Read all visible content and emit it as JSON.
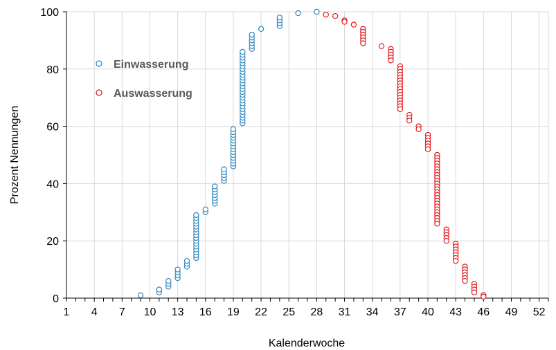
{
  "chart_data": {
    "type": "scatter",
    "xlabel": "Kalenderwoche",
    "ylabel": "Prozent Nennungen",
    "xlim": [
      1,
      53
    ],
    "ylim": [
      0,
      100
    ],
    "x_tick_labels": [
      "1",
      "4",
      "7",
      "10",
      "13",
      "16",
      "19",
      "22",
      "25",
      "28",
      "31",
      "34",
      "37",
      "40",
      "43",
      "46",
      "49",
      "52"
    ],
    "y_tick_labels": [
      "0",
      "20",
      "40",
      "60",
      "80",
      "100"
    ],
    "grid": true,
    "legend_position": "upper-left",
    "series": [
      {
        "name": "Einwasserung",
        "color": "#2E86C1",
        "points": [
          [
            9,
            1
          ],
          [
            11,
            2
          ],
          [
            11,
            3
          ],
          [
            12,
            4
          ],
          [
            12,
            5
          ],
          [
            12,
            6
          ],
          [
            13,
            7
          ],
          [
            13,
            8
          ],
          [
            13,
            9
          ],
          [
            13,
            10
          ],
          [
            14,
            11
          ],
          [
            14,
            12
          ],
          [
            14,
            13
          ],
          [
            15,
            14
          ],
          [
            15,
            15
          ],
          [
            15,
            16
          ],
          [
            15,
            17
          ],
          [
            15,
            18
          ],
          [
            15,
            19
          ],
          [
            15,
            20
          ],
          [
            15,
            21
          ],
          [
            15,
            22
          ],
          [
            15,
            23
          ],
          [
            15,
            24
          ],
          [
            15,
            25
          ],
          [
            15,
            26
          ],
          [
            15,
            27
          ],
          [
            15,
            28
          ],
          [
            15,
            29
          ],
          [
            16,
            30
          ],
          [
            16,
            31
          ],
          [
            17,
            33
          ],
          [
            17,
            34
          ],
          [
            17,
            35
          ],
          [
            17,
            36
          ],
          [
            17,
            37
          ],
          [
            17,
            38
          ],
          [
            17,
            39
          ],
          [
            18,
            41
          ],
          [
            18,
            42
          ],
          [
            18,
            43
          ],
          [
            18,
            44
          ],
          [
            18,
            45
          ],
          [
            19,
            46
          ],
          [
            19,
            47
          ],
          [
            19,
            48
          ],
          [
            19,
            49
          ],
          [
            19,
            50
          ],
          [
            19,
            51
          ],
          [
            19,
            52
          ],
          [
            19,
            53
          ],
          [
            19,
            54
          ],
          [
            19,
            55
          ],
          [
            19,
            56
          ],
          [
            19,
            57
          ],
          [
            19,
            58
          ],
          [
            19,
            59
          ],
          [
            20,
            61
          ],
          [
            20,
            62
          ],
          [
            20,
            63
          ],
          [
            20,
            64
          ],
          [
            20,
            65
          ],
          [
            20,
            66
          ],
          [
            20,
            67
          ],
          [
            20,
            68
          ],
          [
            20,
            69
          ],
          [
            20,
            70
          ],
          [
            20,
            71
          ],
          [
            20,
            72
          ],
          [
            20,
            73
          ],
          [
            20,
            74
          ],
          [
            20,
            75
          ],
          [
            20,
            76
          ],
          [
            20,
            77
          ],
          [
            20,
            78
          ],
          [
            20,
            79
          ],
          [
            20,
            80
          ],
          [
            20,
            81
          ],
          [
            20,
            82
          ],
          [
            20,
            83
          ],
          [
            20,
            84
          ],
          [
            20,
            85
          ],
          [
            20,
            86
          ],
          [
            21,
            87
          ],
          [
            21,
            88
          ],
          [
            21,
            89
          ],
          [
            21,
            90
          ],
          [
            21,
            91
          ],
          [
            21,
            92
          ],
          [
            22,
            94
          ],
          [
            24,
            95
          ],
          [
            24,
            96
          ],
          [
            24,
            97
          ],
          [
            24,
            98
          ],
          [
            26,
            99.5
          ],
          [
            28,
            100
          ]
        ]
      },
      {
        "name": "Auswasserung",
        "color": "#E31A1C",
        "points": [
          [
            29,
            99
          ],
          [
            30,
            98.5
          ],
          [
            31,
            97
          ],
          [
            31,
            96.5
          ],
          [
            32,
            95.5
          ],
          [
            33,
            94
          ],
          [
            33,
            93
          ],
          [
            33,
            92
          ],
          [
            33,
            91
          ],
          [
            33,
            90
          ],
          [
            33,
            89
          ],
          [
            35,
            88
          ],
          [
            36,
            87
          ],
          [
            36,
            86
          ],
          [
            36,
            85
          ],
          [
            36,
            84
          ],
          [
            36,
            83
          ],
          [
            37,
            81
          ],
          [
            37,
            80
          ],
          [
            37,
            79
          ],
          [
            37,
            78
          ],
          [
            37,
            77
          ],
          [
            37,
            76
          ],
          [
            37,
            75
          ],
          [
            37,
            74
          ],
          [
            37,
            73
          ],
          [
            37,
            72
          ],
          [
            37,
            71
          ],
          [
            37,
            70
          ],
          [
            37,
            69
          ],
          [
            37,
            68
          ],
          [
            37,
            67
          ],
          [
            37,
            66
          ],
          [
            38,
            64
          ],
          [
            38,
            63
          ],
          [
            38,
            62
          ],
          [
            39,
            60
          ],
          [
            39,
            59
          ],
          [
            40,
            57
          ],
          [
            40,
            56
          ],
          [
            40,
            55
          ],
          [
            40,
            54
          ],
          [
            40,
            53
          ],
          [
            40,
            52
          ],
          [
            41,
            50
          ],
          [
            41,
            49
          ],
          [
            41,
            48
          ],
          [
            41,
            47
          ],
          [
            41,
            46
          ],
          [
            41,
            45
          ],
          [
            41,
            44
          ],
          [
            41,
            43
          ],
          [
            41,
            42
          ],
          [
            41,
            41
          ],
          [
            41,
            40
          ],
          [
            41,
            39
          ],
          [
            41,
            38
          ],
          [
            41,
            37
          ],
          [
            41,
            36
          ],
          [
            41,
            35
          ],
          [
            41,
            34
          ],
          [
            41,
            33
          ],
          [
            41,
            32
          ],
          [
            41,
            31
          ],
          [
            41,
            30
          ],
          [
            41,
            29
          ],
          [
            41,
            28
          ],
          [
            41,
            27
          ],
          [
            41,
            26
          ],
          [
            42,
            24
          ],
          [
            42,
            23
          ],
          [
            42,
            22
          ],
          [
            42,
            21
          ],
          [
            42,
            20
          ],
          [
            43,
            19
          ],
          [
            43,
            18
          ],
          [
            43,
            17
          ],
          [
            43,
            16
          ],
          [
            43,
            15
          ],
          [
            43,
            14
          ],
          [
            43,
            13
          ],
          [
            44,
            11
          ],
          [
            44,
            10
          ],
          [
            44,
            9
          ],
          [
            44,
            8
          ],
          [
            44,
            7
          ],
          [
            44,
            6
          ],
          [
            45,
            5
          ],
          [
            45,
            4
          ],
          [
            45,
            3
          ],
          [
            45,
            2
          ],
          [
            46,
            1
          ],
          [
            46,
            0.5
          ]
        ]
      }
    ]
  }
}
